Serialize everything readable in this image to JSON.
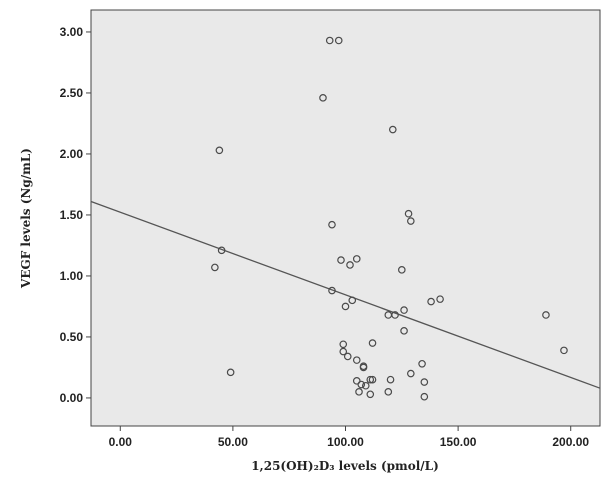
{
  "chart_data": {
    "type": "scatter",
    "title": "",
    "xlabel": "1,25(OH)₂D₃ levels (pmol/L)",
    "ylabel": "VEGF levels (Ng/mL)",
    "xlim": [
      -13,
      213
    ],
    "ylim": [
      -0.23,
      3.18
    ],
    "x_ticks": [
      0,
      50,
      100,
      150,
      200
    ],
    "x_tick_labels": [
      "0.00",
      "50.00",
      "100.00",
      "150.00",
      "200.00"
    ],
    "y_ticks": [
      0,
      0.5,
      1.0,
      1.5,
      2.0,
      2.5,
      3.0
    ],
    "y_tick_labels": [
      "0.00",
      "0.50",
      "1.00",
      "1.50",
      "2.00",
      "2.50",
      "3.00"
    ],
    "grid": false,
    "legend": "none",
    "colors": {
      "plot_background": "#e9e9e9",
      "point_stroke": "#4a4a4a",
      "fit_line": "#555555"
    },
    "fit_line": {
      "x": [
        -13,
        213
      ],
      "y": [
        1.61,
        0.08
      ]
    },
    "series": [
      {
        "points": [
          [
            44,
            2.03
          ],
          [
            42,
            1.07
          ],
          [
            45,
            1.21
          ],
          [
            49,
            0.21
          ],
          [
            90,
            2.46
          ],
          [
            93,
            2.93
          ],
          [
            97,
            2.93
          ],
          [
            94,
            1.42
          ],
          [
            94,
            0.88
          ],
          [
            98,
            1.13
          ],
          [
            99,
            0.44
          ],
          [
            99,
            0.38
          ],
          [
            100,
            0.75
          ],
          [
            101,
            0.34
          ],
          [
            102,
            1.09
          ],
          [
            103,
            0.8
          ],
          [
            105,
            1.14
          ],
          [
            105,
            0.31
          ],
          [
            105,
            0.14
          ],
          [
            106,
            0.05
          ],
          [
            107,
            0.11
          ],
          [
            108,
            0.26
          ],
          [
            108,
            0.25
          ],
          [
            109,
            0.1
          ],
          [
            111,
            0.15
          ],
          [
            111,
            0.03
          ],
          [
            112,
            0.45
          ],
          [
            112,
            0.15
          ],
          [
            119,
            0.05
          ],
          [
            119,
            0.68
          ],
          [
            120,
            0.15
          ],
          [
            121,
            2.2
          ],
          [
            122,
            0.68
          ],
          [
            125,
            1.05
          ],
          [
            126,
            0.72
          ],
          [
            126,
            0.55
          ],
          [
            128,
            1.51
          ],
          [
            129,
            1.45
          ],
          [
            129,
            0.2
          ],
          [
            134,
            0.28
          ],
          [
            135,
            0.13
          ],
          [
            135,
            0.01
          ],
          [
            138,
            0.79
          ],
          [
            142,
            0.81
          ],
          [
            189,
            0.68
          ],
          [
            197,
            0.39
          ]
        ]
      }
    ]
  }
}
